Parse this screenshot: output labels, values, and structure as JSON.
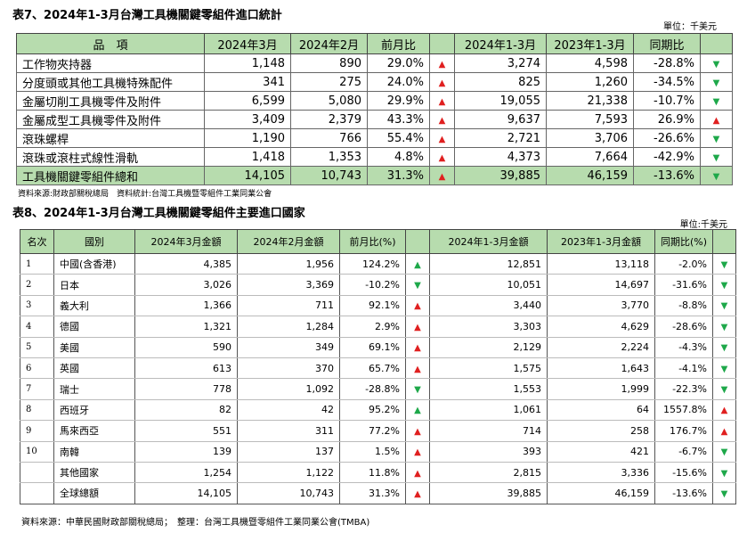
{
  "table7": {
    "title": "表7、2024年1-3月台灣工具機關鍵零組件進口統計",
    "unit": "單位：千美元",
    "headers": [
      "品　項",
      "2024年3月",
      "2024年2月",
      "前月比",
      "",
      "2024年1-3月",
      "2023年1-3月",
      "同期比",
      ""
    ],
    "rows": [
      {
        "name": "工作物夾持器",
        "m3": "1,148",
        "m2": "890",
        "mom": "29.0%",
        "mom_dir": "up",
        "ytd24": "3,274",
        "ytd23": "4,598",
        "yoy": "-28.8%",
        "yoy_dir": "down"
      },
      {
        "name": "分度頭或其他工具機特殊配件",
        "m3": "341",
        "m2": "275",
        "mom": "24.0%",
        "mom_dir": "up",
        "ytd24": "825",
        "ytd23": "1,260",
        "yoy": "-34.5%",
        "yoy_dir": "down"
      },
      {
        "name": "金屬切削工具機零件及附件",
        "m3": "6,599",
        "m2": "5,080",
        "mom": "29.9%",
        "mom_dir": "up",
        "ytd24": "19,055",
        "ytd23": "21,338",
        "yoy": "-10.7%",
        "yoy_dir": "down"
      },
      {
        "name": "金屬成型工具機零件及附件",
        "m3": "3,409",
        "m2": "2,379",
        "mom": "43.3%",
        "mom_dir": "up",
        "ytd24": "9,637",
        "ytd23": "7,593",
        "yoy": "26.9%",
        "yoy_dir": "up"
      },
      {
        "name": "滾珠螺桿",
        "m3": "1,190",
        "m2": "766",
        "mom": "55.4%",
        "mom_dir": "up",
        "ytd24": "2,721",
        "ytd23": "3,706",
        "yoy": "-26.6%",
        "yoy_dir": "down"
      },
      {
        "name": "滾珠或滾柱式線性滑軌",
        "m3": "1,418",
        "m2": "1,353",
        "mom": "4.8%",
        "mom_dir": "up",
        "ytd24": "4,373",
        "ytd23": "7,664",
        "yoy": "-42.9%",
        "yoy_dir": "down"
      }
    ],
    "total": {
      "name": "工具機關鍵零組件總和",
      "m3": "14,105",
      "m2": "10,743",
      "mom": "31.3%",
      "mom_dir": "up",
      "ytd24": "39,885",
      "ytd23": "46,159",
      "yoy": "-13.6%",
      "yoy_dir": "down"
    },
    "source": "資料來源:財政部關稅總局　資料統計:台灣工具機暨零組件工業同業公會"
  },
  "table8": {
    "title": "表8、2024年1-3月台灣工具機關鍵零組件主要進口國家",
    "unit": "單位:千美元",
    "headers": [
      "名次",
      "國別",
      "2024年3月金額",
      "2024年2月金額",
      "前月比(%)",
      "",
      "2024年1-3月金額",
      "2023年1-3月金額",
      "同期比(%)",
      ""
    ],
    "rows": [
      {
        "rank": "1",
        "country": "中國(含香港)",
        "m3": "4,385",
        "m2": "1,956",
        "mom": "124.2%",
        "mom_dir": "up_green",
        "ytd24": "12,851",
        "ytd23": "13,118",
        "yoy": "-2.0%",
        "yoy_dir": "down"
      },
      {
        "rank": "2",
        "country": "日本",
        "m3": "3,026",
        "m2": "3,369",
        "mom": "-10.2%",
        "mom_dir": "down",
        "ytd24": "10,051",
        "ytd23": "14,697",
        "yoy": "-31.6%",
        "yoy_dir": "down"
      },
      {
        "rank": "3",
        "country": "義大利",
        "m3": "1,366",
        "m2": "711",
        "mom": "92.1%",
        "mom_dir": "up",
        "ytd24": "3,440",
        "ytd23": "3,770",
        "yoy": "-8.8%",
        "yoy_dir": "down"
      },
      {
        "rank": "4",
        "country": "德國",
        "m3": "1,321",
        "m2": "1,284",
        "mom": "2.9%",
        "mom_dir": "up",
        "ytd24": "3,303",
        "ytd23": "4,629",
        "yoy": "-28.6%",
        "yoy_dir": "down"
      },
      {
        "rank": "5",
        "country": "美國",
        "m3": "590",
        "m2": "349",
        "mom": "69.1%",
        "mom_dir": "up",
        "ytd24": "2,129",
        "ytd23": "2,224",
        "yoy": "-4.3%",
        "yoy_dir": "down"
      },
      {
        "rank": "6",
        "country": "英國",
        "m3": "613",
        "m2": "370",
        "mom": "65.7%",
        "mom_dir": "up",
        "ytd24": "1,575",
        "ytd23": "1,643",
        "yoy": "-4.1%",
        "yoy_dir": "down"
      },
      {
        "rank": "7",
        "country": "瑞士",
        "m3": "778",
        "m2": "1,092",
        "mom": "-28.8%",
        "mom_dir": "down",
        "ytd24": "1,553",
        "ytd23": "1,999",
        "yoy": "-22.3%",
        "yoy_dir": "down"
      },
      {
        "rank": "8",
        "country": "西班牙",
        "m3": "82",
        "m2": "42",
        "mom": "95.2%",
        "mom_dir": "up_green",
        "ytd24": "1,061",
        "ytd23": "64",
        "yoy": "1557.8%",
        "yoy_dir": "up"
      },
      {
        "rank": "9",
        "country": "馬來西亞",
        "m3": "551",
        "m2": "311",
        "mom": "77.2%",
        "mom_dir": "up",
        "ytd24": "714",
        "ytd23": "258",
        "yoy": "176.7%",
        "yoy_dir": "up"
      },
      {
        "rank": "10",
        "country": "南韓",
        "m3": "139",
        "m2": "137",
        "mom": "1.5%",
        "mom_dir": "up",
        "ytd24": "393",
        "ytd23": "421",
        "yoy": "-6.7%",
        "yoy_dir": "down"
      },
      {
        "rank": "",
        "country": "其他國家",
        "m3": "1,254",
        "m2": "1,122",
        "mom": "11.8%",
        "mom_dir": "up",
        "ytd24": "2,815",
        "ytd23": "3,336",
        "yoy": "-15.6%",
        "yoy_dir": "down"
      },
      {
        "rank": "",
        "country": "全球總額",
        "m3": "14,105",
        "m2": "10,743",
        "mom": "31.3%",
        "mom_dir": "up",
        "ytd24": "39,885",
        "ytd23": "46,159",
        "yoy": "-13.6%",
        "yoy_dir": "down"
      }
    ],
    "source": "資料來源：中華民國財政部關稅總局；　整理：台灣工具機暨零組件工業同業公會(TMBA)"
  },
  "icons": {
    "up": "triangle-up-red",
    "up_green": "triangle-up-green",
    "down": "triangle-down-green"
  },
  "colors": {
    "header_bg": "#b7dcae",
    "up": "#e02020",
    "down": "#1ea84a"
  }
}
